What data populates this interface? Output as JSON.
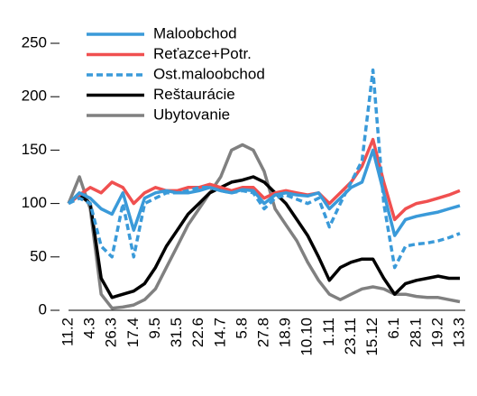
{
  "chart_data": {
    "type": "line",
    "categories": [
      "11.2",
      null,
      "4.3",
      null,
      "26.3",
      null,
      "17.4",
      null,
      "9.5",
      null,
      "31.5",
      null,
      "22.6",
      null,
      "14.7",
      null,
      "5.8",
      null,
      "27.8",
      null,
      "18.9",
      null,
      "10.10",
      null,
      "1.11",
      null,
      "23.11",
      null,
      "15.12",
      null,
      "6.1",
      null,
      "28.1",
      null,
      "19.2",
      null,
      "13.3"
    ],
    "series": [
      {
        "name": "Maloobchod",
        "color": "#3a9ad9",
        "dash": false,
        "values": [
          100,
          110,
          105,
          95,
          90,
          110,
          75,
          105,
          110,
          112,
          110,
          110,
          112,
          115,
          112,
          110,
          113,
          112,
          100,
          108,
          110,
          108,
          107,
          110,
          95,
          105,
          115,
          120,
          150,
          110,
          70,
          85,
          88,
          90,
          92,
          95,
          98
        ]
      },
      {
        "name": "Reťazce+Potr.",
        "color": "#f05050",
        "dash": false,
        "values": [
          100,
          108,
          115,
          110,
          120,
          115,
          100,
          110,
          115,
          112,
          112,
          115,
          115,
          118,
          115,
          112,
          115,
          115,
          105,
          110,
          112,
          110,
          108,
          110,
          100,
          110,
          120,
          135,
          160,
          120,
          85,
          95,
          100,
          102,
          105,
          108,
          112
        ]
      },
      {
        "name": "Ost.maloobchod",
        "color": "#3a9ad9",
        "dash": true,
        "values": [
          100,
          105,
          100,
          60,
          50,
          100,
          50,
          100,
          105,
          110,
          110,
          112,
          115,
          115,
          112,
          110,
          112,
          110,
          95,
          105,
          108,
          104,
          100,
          105,
          78,
          100,
          120,
          140,
          225,
          100,
          40,
          60,
          62,
          63,
          65,
          68,
          72
        ]
      },
      {
        "name": "Reštaurácie",
        "color": "#000000",
        "dash": false,
        "values": [
          100,
          108,
          100,
          30,
          12,
          15,
          18,
          25,
          40,
          60,
          75,
          90,
          100,
          110,
          115,
          120,
          122,
          125,
          120,
          110,
          100,
          85,
          70,
          50,
          28,
          40,
          45,
          48,
          48,
          30,
          15,
          25,
          28,
          30,
          32,
          30,
          30
        ]
      },
      {
        "name": "Ubytovanie",
        "color": "#808080",
        "dash": false,
        "values": [
          100,
          125,
          95,
          15,
          2,
          3,
          5,
          10,
          20,
          40,
          60,
          80,
          95,
          110,
          125,
          150,
          155,
          150,
          130,
          95,
          80,
          65,
          45,
          28,
          15,
          10,
          15,
          20,
          22,
          20,
          15,
          15,
          13,
          12,
          12,
          10,
          8
        ]
      }
    ],
    "ylim": [
      0,
      250
    ],
    "yticks": [
      0,
      50,
      100,
      150,
      200,
      250
    ],
    "grid": false,
    "legend": "top-left"
  }
}
